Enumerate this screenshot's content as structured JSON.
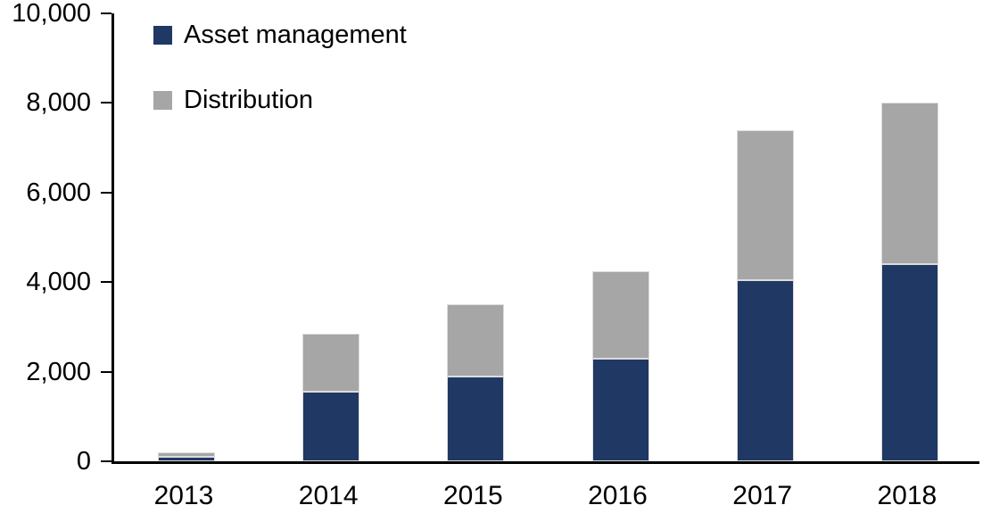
{
  "chart_data": {
    "type": "bar",
    "stacked": true,
    "title": "",
    "xlabel": "",
    "ylabel": "",
    "categories": [
      "2013",
      "2014",
      "2015",
      "2016",
      "2017",
      "2018"
    ],
    "series": [
      {
        "name": "Asset management",
        "color": "#1f3864",
        "values": [
          100,
          1550,
          1900,
          2300,
          4050,
          4400
        ]
      },
      {
        "name": "Distribution",
        "color": "#a6a6a6",
        "values": [
          100,
          1300,
          1600,
          1950,
          3350,
          3600
        ]
      }
    ],
    "totals": [
      200,
      2850,
      3500,
      4250,
      7400,
      8000
    ],
    "ylim": [
      0,
      10000
    ],
    "ytick_step": 2000,
    "ytick_labels": [
      "0",
      "2,000",
      "4,000",
      "6,000",
      "8,000",
      "10,000"
    ],
    "grid": false,
    "legend_position": "top-left"
  },
  "legend": {
    "items": [
      {
        "label": "Asset management",
        "color": "#1f3864"
      },
      {
        "label": "Distribution",
        "color": "#a6a6a6"
      }
    ]
  },
  "colors": {
    "axis": "#000000",
    "background": "#ffffff",
    "bar_border": "#dcdcdc"
  }
}
